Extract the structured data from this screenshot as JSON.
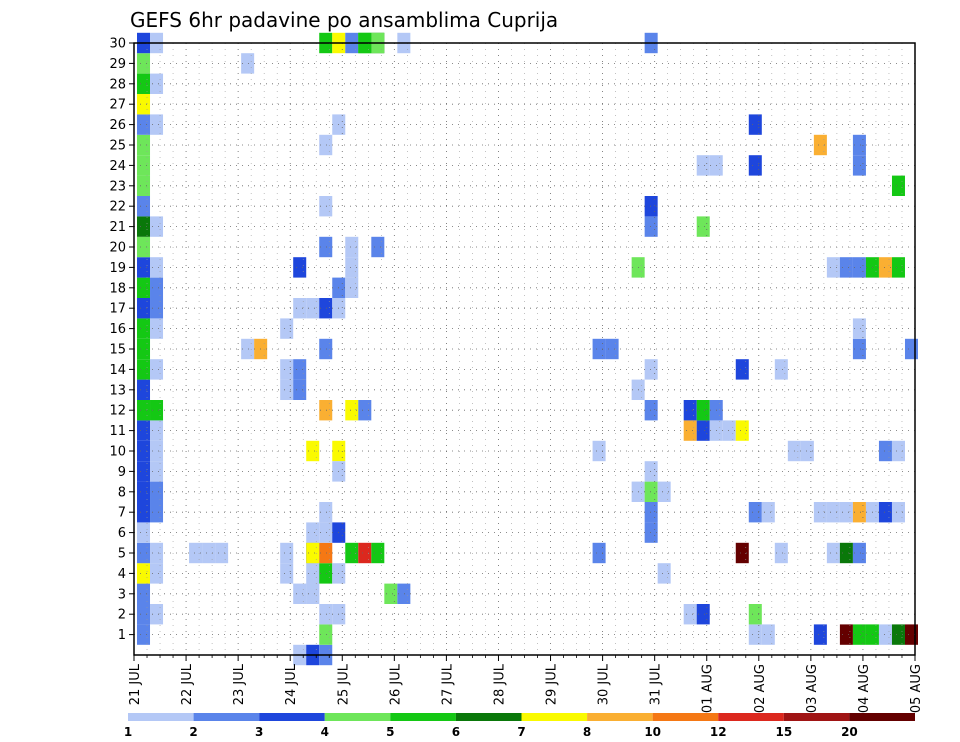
{
  "chart_data": {
    "type": "heatmap",
    "title": "GEFS 6hr padavine po ansamblima Cuprija",
    "xlabel": "",
    "ylabel": "",
    "x_tick_labels": [
      "21 JUL",
      "22 JUL",
      "23 JUL",
      "24 JUL",
      "25 JUL",
      "26 JUL",
      "27 JUL",
      "28 JUL",
      "29 JUL",
      "30 JUL",
      "31 JUL",
      "01 AUG",
      "02 AUG",
      "03 AUG",
      "04 AUG",
      "05 AUG"
    ],
    "y_tick_labels": [
      "1",
      "2",
      "3",
      "4",
      "5",
      "6",
      "7",
      "8",
      "9",
      "10",
      "11",
      "12",
      "13",
      "14",
      "15",
      "16",
      "17",
      "18",
      "19",
      "20",
      "21",
      "22",
      "23",
      "24",
      "25",
      "26",
      "27",
      "28",
      "29",
      "30"
    ],
    "x_unit": "6-hour step (4 per day) from 21 JUL",
    "ylim": [
      0,
      30
    ],
    "grid": true,
    "colorbar": {
      "placement": "bottom",
      "labels": [
        "1",
        "2",
        "3",
        "4",
        "5",
        "6",
        "7",
        "8",
        "10",
        "12",
        "15",
        "20"
      ],
      "colors": [
        "#b4c8f6",
        "#5a84ea",
        "#1e46dc",
        "#6ee65a",
        "#14c814",
        "#0a780a",
        "#fafa00",
        "#faaf32",
        "#f57814",
        "#dc281e",
        "#a01414",
        "#640000"
      ]
    },
    "cells": [
      [
        0,
        1,
        1
      ],
      [
        0,
        2,
        1
      ],
      [
        0,
        3,
        1
      ],
      [
        0,
        4,
        6
      ],
      [
        0,
        5,
        1
      ],
      [
        0,
        6,
        0
      ],
      [
        0,
        7,
        2
      ],
      [
        0,
        8,
        2
      ],
      [
        0,
        9,
        2
      ],
      [
        0,
        10,
        2
      ],
      [
        0,
        11,
        2
      ],
      [
        0,
        12,
        4
      ],
      [
        0,
        13,
        2
      ],
      [
        0,
        14,
        4
      ],
      [
        0,
        15,
        4
      ],
      [
        0,
        16,
        4
      ],
      [
        0,
        17,
        2
      ],
      [
        0,
        18,
        4
      ],
      [
        0,
        19,
        2
      ],
      [
        0,
        20,
        3
      ],
      [
        0,
        21,
        5
      ],
      [
        0,
        22,
        1
      ],
      [
        0,
        23,
        3
      ],
      [
        0,
        24,
        3
      ],
      [
        0,
        25,
        3
      ],
      [
        0,
        26,
        1
      ],
      [
        0,
        27,
        6
      ],
      [
        0,
        28,
        4
      ],
      [
        0,
        29,
        3
      ],
      [
        0,
        30,
        2
      ],
      [
        1,
        2,
        0
      ],
      [
        1,
        4,
        0
      ],
      [
        1,
        5,
        0
      ],
      [
        1,
        7,
        1
      ],
      [
        1,
        8,
        1
      ],
      [
        1,
        9,
        0
      ],
      [
        1,
        10,
        0
      ],
      [
        1,
        11,
        0
      ],
      [
        1,
        12,
        4
      ],
      [
        1,
        14,
        0
      ],
      [
        1,
        16,
        0
      ],
      [
        1,
        17,
        1
      ],
      [
        1,
        18,
        1
      ],
      [
        1,
        19,
        0
      ],
      [
        1,
        21,
        0
      ],
      [
        1,
        26,
        0
      ],
      [
        1,
        28,
        0
      ],
      [
        1,
        30,
        0
      ],
      [
        4,
        5,
        0
      ],
      [
        5,
        5,
        0
      ],
      [
        6,
        5,
        0
      ],
      [
        8,
        15,
        0
      ],
      [
        8,
        29,
        0
      ],
      [
        9,
        15,
        7
      ],
      [
        12,
        19,
        2
      ],
      [
        12,
        0,
        0
      ],
      [
        13,
        0,
        2
      ],
      [
        13,
        17,
        0
      ],
      [
        14,
        0,
        1
      ],
      [
        14,
        17,
        2
      ],
      [
        11,
        5,
        0
      ],
      [
        11,
        4,
        0
      ],
      [
        11,
        14,
        0
      ],
      [
        11,
        13,
        0
      ],
      [
        11,
        16,
        0
      ],
      [
        12,
        14,
        1
      ],
      [
        12,
        13,
        1
      ],
      [
        12,
        3,
        0
      ],
      [
        12,
        17,
        0
      ],
      [
        13,
        3,
        0
      ],
      [
        13,
        5,
        2
      ],
      [
        13,
        6,
        0
      ],
      [
        13,
        4,
        0
      ],
      [
        14,
        1,
        3
      ],
      [
        14,
        2,
        0
      ],
      [
        14,
        4,
        4
      ],
      [
        14,
        5,
        8
      ],
      [
        14,
        6,
        0
      ],
      [
        14,
        7,
        0
      ],
      [
        14,
        12,
        7
      ],
      [
        14,
        15,
        1
      ],
      [
        14,
        20,
        1
      ],
      [
        14,
        22,
        0
      ],
      [
        14,
        25,
        0
      ],
      [
        14,
        30,
        4
      ],
      [
        15,
        30,
        6
      ],
      [
        15,
        10,
        6
      ],
      [
        15,
        4,
        0
      ],
      [
        13,
        5,
        6
      ],
      [
        13,
        10,
        6
      ],
      [
        13,
        3,
        0
      ],
      [
        15,
        6,
        2
      ],
      [
        15,
        18,
        1
      ],
      [
        15,
        26,
        0
      ],
      [
        15,
        2,
        0
      ],
      [
        15,
        9,
        0
      ],
      [
        15,
        17,
        0
      ],
      [
        16,
        5,
        4
      ],
      [
        16,
        12,
        6
      ],
      [
        16,
        18,
        0
      ],
      [
        16,
        19,
        0
      ],
      [
        16,
        20,
        0
      ],
      [
        16,
        30,
        1
      ],
      [
        17,
        5,
        9
      ],
      [
        17,
        12,
        1
      ],
      [
        17,
        30,
        4
      ],
      [
        18,
        5,
        4
      ],
      [
        18,
        20,
        1
      ],
      [
        18,
        30,
        5
      ],
      [
        19,
        3,
        3
      ],
      [
        20,
        3,
        1
      ],
      [
        20,
        30,
        0
      ],
      [
        18,
        30,
        3
      ],
      [
        17,
        30,
        4
      ],
      [
        35,
        15,
        1
      ],
      [
        36,
        15,
        1
      ],
      [
        35,
        10,
        0
      ],
      [
        35,
        5,
        1
      ],
      [
        38,
        13,
        0
      ],
      [
        38,
        8,
        0
      ],
      [
        38,
        19,
        3
      ],
      [
        39,
        7,
        1
      ],
      [
        39,
        6,
        1
      ],
      [
        39,
        8,
        3
      ],
      [
        39,
        9,
        0
      ],
      [
        39,
        12,
        1
      ],
      [
        39,
        14,
        0
      ],
      [
        39,
        21,
        1
      ],
      [
        39,
        22,
        2
      ],
      [
        39,
        30,
        1
      ],
      [
        40,
        8,
        0
      ],
      [
        40,
        4,
        0
      ],
      [
        42,
        11,
        7
      ],
      [
        42,
        12,
        2
      ],
      [
        42,
        2,
        0
      ],
      [
        43,
        11,
        2
      ],
      [
        43,
        12,
        4
      ],
      [
        43,
        2,
        2
      ],
      [
        44,
        11,
        0
      ],
      [
        44,
        12,
        1
      ],
      [
        43,
        24,
        0
      ],
      [
        44,
        24,
        0
      ],
      [
        43,
        21,
        3
      ],
      [
        45,
        11,
        0
      ],
      [
        46,
        11,
        6
      ],
      [
        46,
        14,
        2
      ],
      [
        46,
        5,
        11
      ],
      [
        47,
        1,
        0
      ],
      [
        47,
        2,
        3
      ],
      [
        47,
        7,
        1
      ],
      [
        47,
        24,
        2
      ],
      [
        47,
        26,
        2
      ],
      [
        48,
        1,
        0
      ],
      [
        48,
        7,
        0
      ],
      [
        49,
        5,
        0
      ],
      [
        49,
        14,
        0
      ],
      [
        50,
        10,
        0
      ],
      [
        51,
        10,
        0
      ],
      [
        52,
        1,
        2
      ],
      [
        52,
        7,
        0
      ],
      [
        52,
        25,
        7
      ],
      [
        53,
        5,
        0
      ],
      [
        53,
        7,
        0
      ],
      [
        53,
        19,
        0
      ],
      [
        54,
        1,
        11
      ],
      [
        54,
        5,
        5
      ],
      [
        54,
        7,
        0
      ],
      [
        54,
        19,
        1
      ],
      [
        55,
        1,
        4
      ],
      [
        55,
        5,
        1
      ],
      [
        55,
        7,
        7
      ],
      [
        55,
        15,
        1
      ],
      [
        55,
        16,
        0
      ],
      [
        55,
        19,
        1
      ],
      [
        55,
        24,
        1
      ],
      [
        55,
        25,
        1
      ],
      [
        56,
        1,
        4
      ],
      [
        56,
        7,
        0
      ],
      [
        56,
        19,
        4
      ],
      [
        57,
        1,
        0
      ],
      [
        57,
        7,
        2
      ],
      [
        57,
        19,
        7
      ],
      [
        57,
        10,
        1
      ],
      [
        58,
        1,
        5
      ],
      [
        58,
        7,
        0
      ],
      [
        58,
        10,
        0
      ],
      [
        58,
        19,
        4
      ],
      [
        58,
        23,
        4
      ],
      [
        59,
        1,
        11
      ],
      [
        59,
        15,
        1
      ]
    ]
  }
}
